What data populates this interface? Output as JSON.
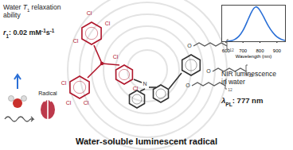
{
  "diagram": {
    "title": "Water-soluble luminescent radical",
    "relaxation_heading": [
      {
        "t": "Water "
      },
      {
        "t": "T",
        "i": true
      },
      {
        "t": "1",
        "sub": true
      },
      {
        "t": " relaxation"
      }
    ],
    "relaxation_heading_line2": [
      {
        "t": "ability"
      }
    ],
    "relaxation_value": [
      {
        "t": "r",
        "i": true
      },
      {
        "t": "1",
        "sub": true
      },
      {
        "t": ": 0.02 mM"
      },
      {
        "t": "-1",
        "sup": true
      },
      {
        "t": "s"
      },
      {
        "t": "-1",
        "sup": true
      }
    ],
    "radical_label": "Radical",
    "luminescence_heading": [
      {
        "t": "NIR luminescence"
      }
    ],
    "luminescence_heading_line2": [
      {
        "t": "in water"
      }
    ],
    "luminescence_value": [
      {
        "t": "λ",
        "i": true
      },
      {
        "t": "PL",
        "sub": true
      },
      {
        "t": ": 777 nm"
      }
    ],
    "atoms": {
      "chlorine": "Cl",
      "nitrogen": "N",
      "oxygen": "O",
      "chain_repeat": "12"
    }
  },
  "chart_data": {
    "type": "line",
    "x": [
      600,
      625,
      650,
      675,
      700,
      725,
      750,
      775,
      800,
      825,
      850,
      875,
      900,
      925,
      950
    ],
    "series": [
      {
        "name": "PL",
        "color": "#2a6fd6",
        "values": [
          0.0,
          0.02,
          0.06,
          0.15,
          0.32,
          0.58,
          0.85,
          1.0,
          0.9,
          0.68,
          0.45,
          0.27,
          0.14,
          0.07,
          0.03
        ]
      }
    ],
    "xlabel": "Wavelength (nm)",
    "xlim": [
      575,
      950
    ],
    "xticks": [
      600,
      700,
      800,
      900
    ],
    "ylim": [
      0,
      1.05
    ],
    "tick_labels": "x"
  }
}
